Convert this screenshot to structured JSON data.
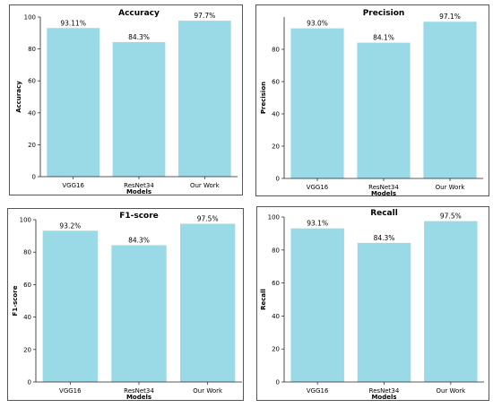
{
  "chart_data": [
    {
      "type": "bar",
      "title": "Accuracy",
      "xlabel": "Models",
      "ylabel": "Accuracy",
      "categories": [
        "VGG16",
        "ResNet34",
        "Our Work"
      ],
      "values": [
        93.11,
        84.3,
        97.7
      ],
      "data_labels": [
        "93.11%",
        "84.3%",
        "97.7%"
      ],
      "yticks": [
        0,
        20,
        40,
        60,
        80,
        100
      ],
      "ylim": [
        0,
        100
      ],
      "grid": false,
      "bar_color": "#9ad9e6"
    },
    {
      "type": "bar",
      "title": "Precision",
      "xlabel": "Models",
      "ylabel": "Precision",
      "categories": [
        "VGG16",
        "ResNet34",
        "Our Work"
      ],
      "values": [
        93.0,
        84.1,
        97.1
      ],
      "data_labels": [
        "93.0%",
        "84.1%",
        "97.1%"
      ],
      "yticks": [
        0,
        20,
        40,
        60,
        80
      ],
      "ylim": [
        0,
        100
      ],
      "grid": false,
      "bar_color": "#9ad9e6"
    },
    {
      "type": "bar",
      "title": "F1-score",
      "xlabel": "Models",
      "ylabel": "F1-score",
      "categories": [
        "VGG16",
        "ResNet34",
        "Our Work"
      ],
      "values": [
        93.2,
        84.3,
        97.5
      ],
      "data_labels": [
        "93.2%",
        "84.3%",
        "97.5%"
      ],
      "yticks": [
        0,
        20,
        40,
        60,
        80,
        100
      ],
      "ylim": [
        0,
        100
      ],
      "grid": false,
      "bar_color": "#9ad9e6"
    },
    {
      "type": "bar",
      "title": "Recall",
      "xlabel": "Models",
      "ylabel": "Recall",
      "categories": [
        "VGG16",
        "ResNet34",
        "Our Work"
      ],
      "values": [
        93.1,
        84.3,
        97.5
      ],
      "data_labels": [
        "93.1%",
        "84.3%",
        "97.5%"
      ],
      "yticks": [
        0,
        20,
        40,
        60,
        80,
        100
      ],
      "ylim": [
        0,
        100
      ],
      "grid": false,
      "bar_color": "#9ad9e6"
    }
  ]
}
